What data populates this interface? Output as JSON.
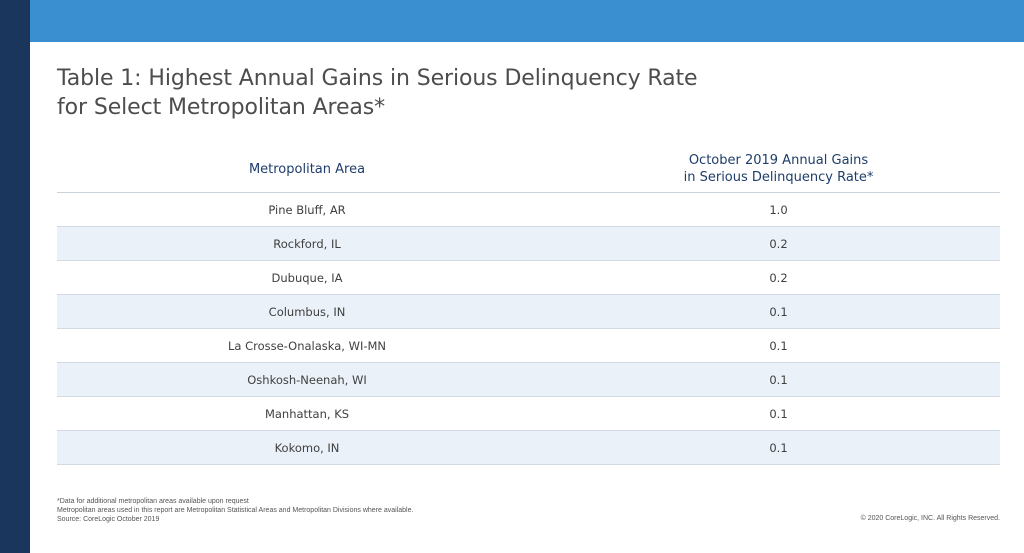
{
  "title": {
    "line1": "Table 1: Highest Annual Gains in Serious Delinquency Rate",
    "line2": "for Select Metropolitan Areas*"
  },
  "table": {
    "headers": {
      "area": "Metropolitan Area",
      "gains_line1": "October 2019 Annual Gains",
      "gains_line2": "in Serious Delinquency Rate*"
    },
    "rows": [
      {
        "area": "Pine Bluff, AR",
        "value": "1.0"
      },
      {
        "area": "Rockford, IL",
        "value": "0.2"
      },
      {
        "area": "Dubuque, IA",
        "value": "0.2"
      },
      {
        "area": "Columbus, IN",
        "value": "0.1"
      },
      {
        "area": "La Crosse-Onalaska, WI-MN",
        "value": "0.1"
      },
      {
        "area": "Oshkosh-Neenah, WI",
        "value": "0.1"
      },
      {
        "area": "Manhattan, KS",
        "value": "0.1"
      },
      {
        "area": "Kokomo, IN",
        "value": "0.1"
      }
    ]
  },
  "footnotes": {
    "note1": "*Data for additional metropolitan areas available upon request",
    "note2": "Metropolitan areas used in this report are Metropolitan Statistical Areas and Metropolitan Divisions where available.",
    "source": "Source: CoreLogic October 2019"
  },
  "copyright": "© 2020 CoreLogic, INC. All Rights Reserved.",
  "colors": {
    "top_bar": "#3a8fd0",
    "left_bar": "#1b365d",
    "header_text": "#1e3d6b",
    "alt_row": "#eaf1f9"
  }
}
